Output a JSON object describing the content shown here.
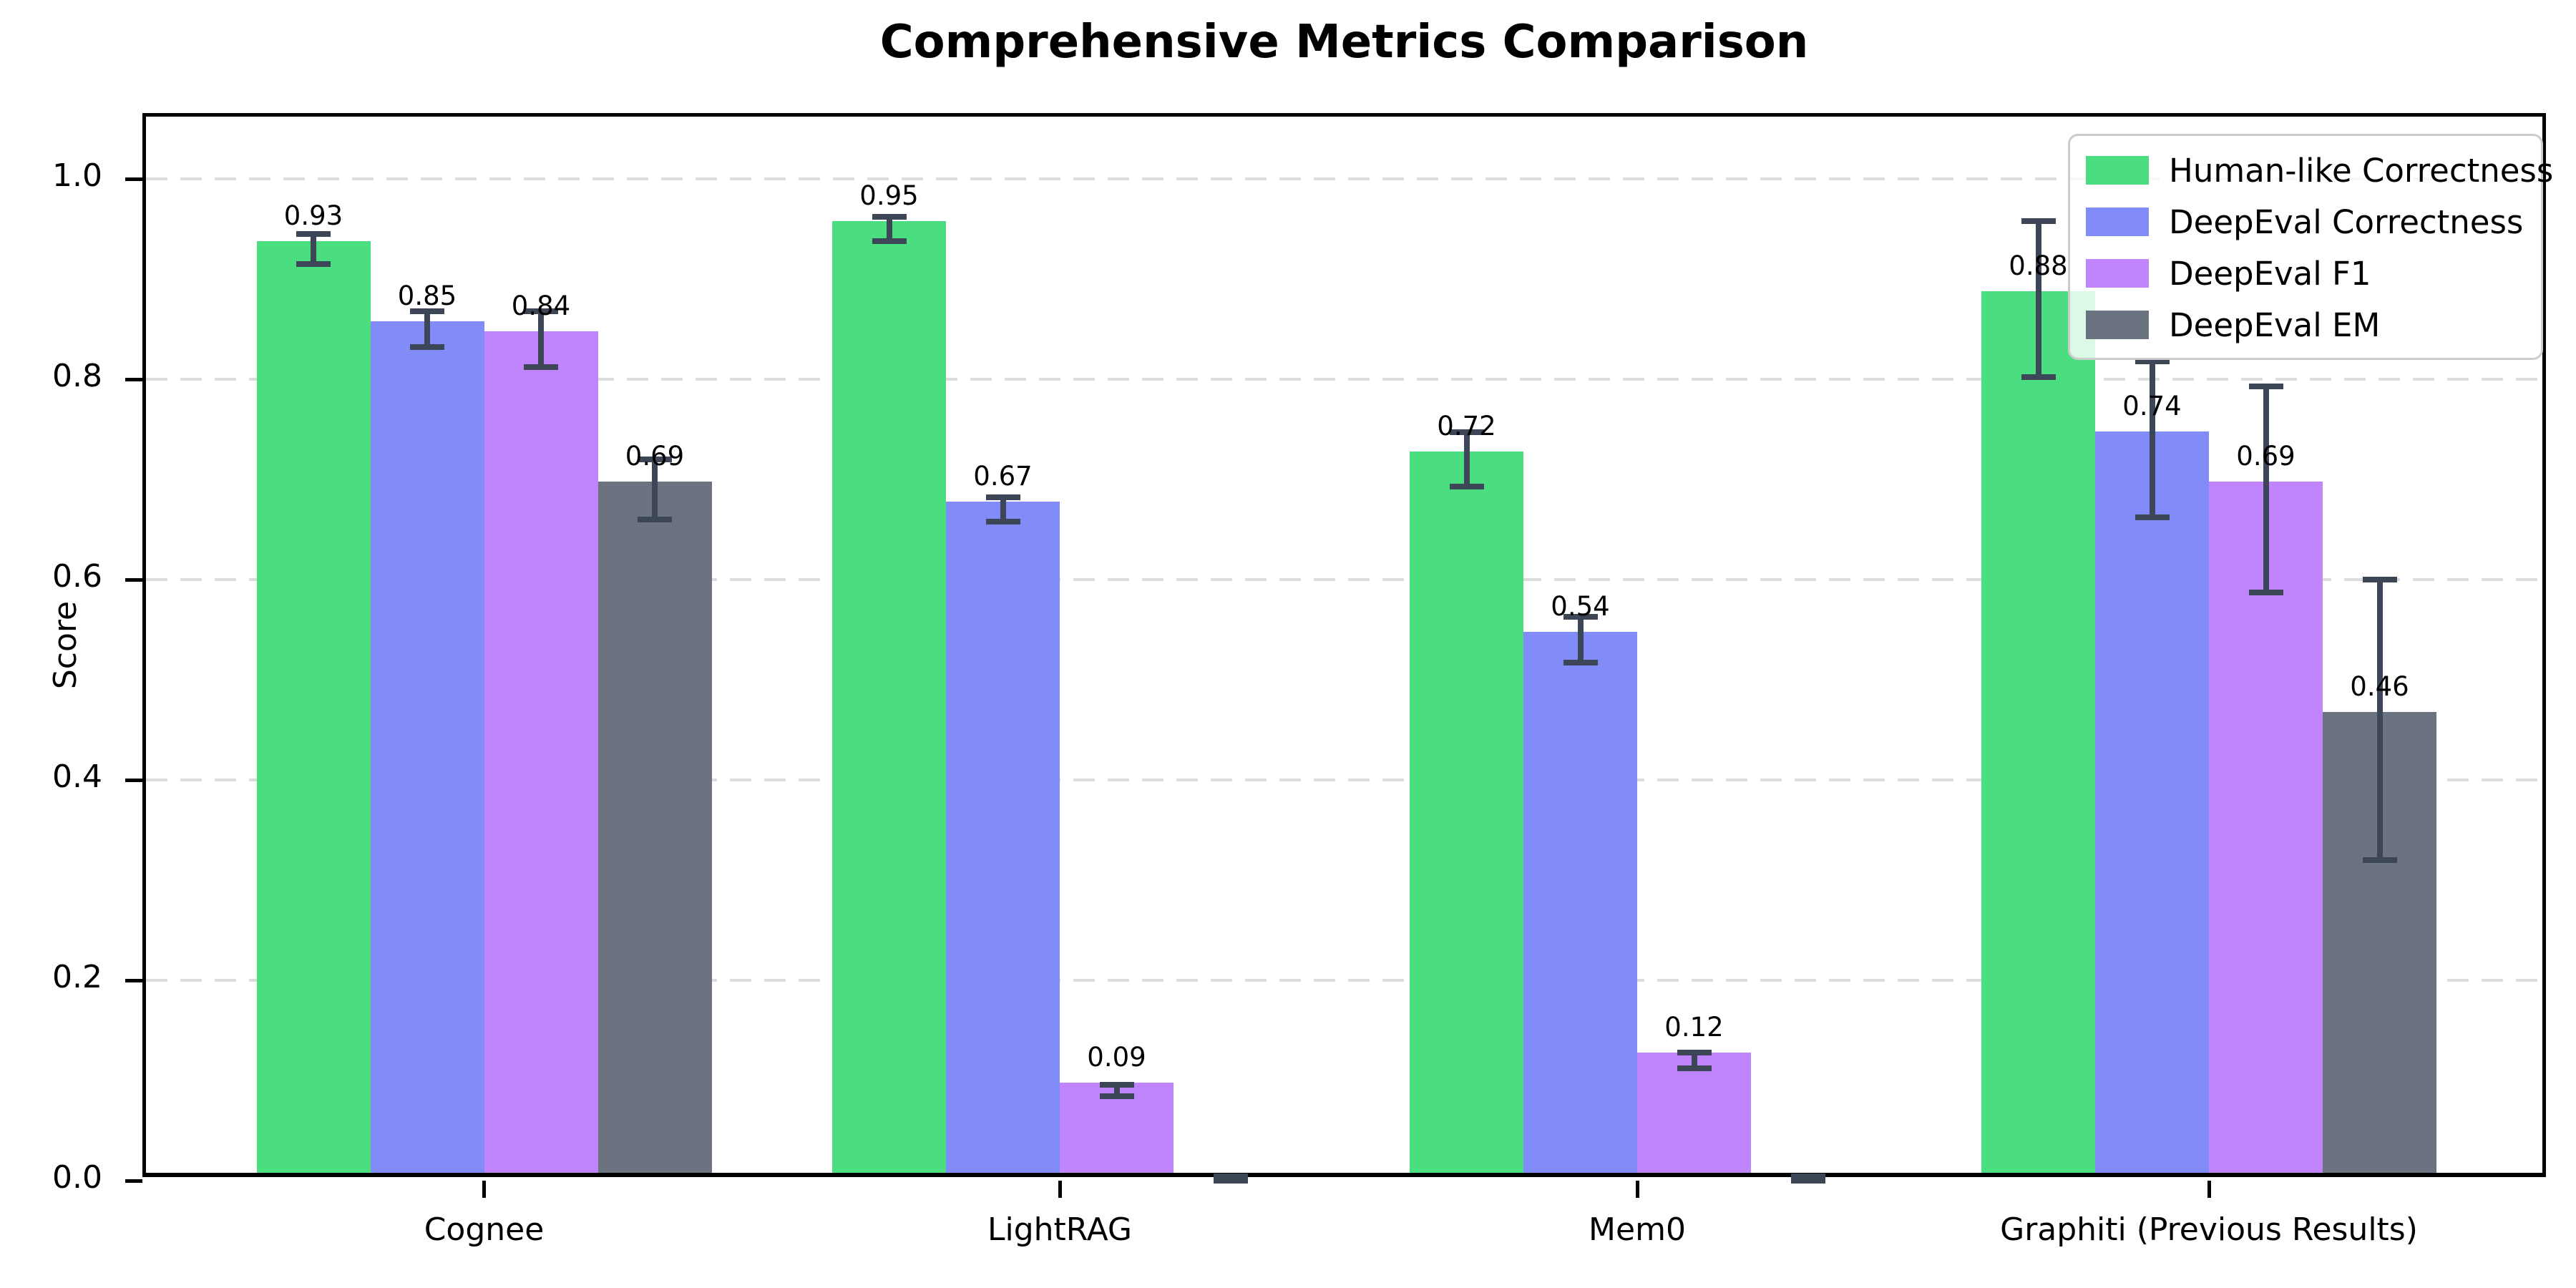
{
  "chart_data": {
    "type": "bar",
    "title": "Comprehensive Metrics Comparison",
    "ylabel": "Score",
    "categories": [
      "Cognee",
      "LightRAG",
      "Mem0",
      "Graphiti (Previous Results)"
    ],
    "series": [
      {
        "name": "Human-like Correctness",
        "color": "#4ade80",
        "values": [
          0.93,
          0.95,
          0.72,
          0.88
        ],
        "errors": [
          0.015,
          0.012,
          0.027,
          0.078
        ],
        "labels": [
          "0.93",
          "0.95",
          "0.72",
          "0.88"
        ]
      },
      {
        "name": "DeepEval Correctness",
        "color": "#818cf8",
        "values": [
          0.85,
          0.67,
          0.54,
          0.74
        ],
        "errors": [
          0.018,
          0.012,
          0.023,
          0.078
        ],
        "labels": [
          "0.85",
          "0.67",
          "0.54",
          "0.74"
        ]
      },
      {
        "name": "DeepEval F1",
        "color": "#c084fc",
        "values": [
          0.84,
          0.09,
          0.12,
          0.69
        ],
        "errors": [
          0.028,
          0.006,
          0.008,
          0.103
        ],
        "labels": [
          "0.84",
          "0.09",
          "0.12",
          "0.69"
        ]
      },
      {
        "name": "DeepEval EM",
        "color": "#6b7280",
        "values": [
          0.69,
          0.0,
          0.0,
          0.46
        ],
        "errors": [
          0.03,
          0.004,
          0.004,
          0.14
        ],
        "labels": [
          "0.69",
          "",
          "",
          "0.46"
        ]
      }
    ],
    "yticks": [
      "0.0",
      "0.2",
      "0.4",
      "0.6",
      "0.8",
      "1.0"
    ],
    "ytick_values": [
      0.0,
      0.2,
      0.4,
      0.6,
      0.8,
      1.0
    ],
    "ylim": [
      0.0,
      1.062
    ],
    "grid": "dashed-horizontal",
    "legend_position": "upper-right",
    "errorbar_color": "#3d4656",
    "grid_color": "#dcdcdc",
    "axis_color": "#000000"
  }
}
